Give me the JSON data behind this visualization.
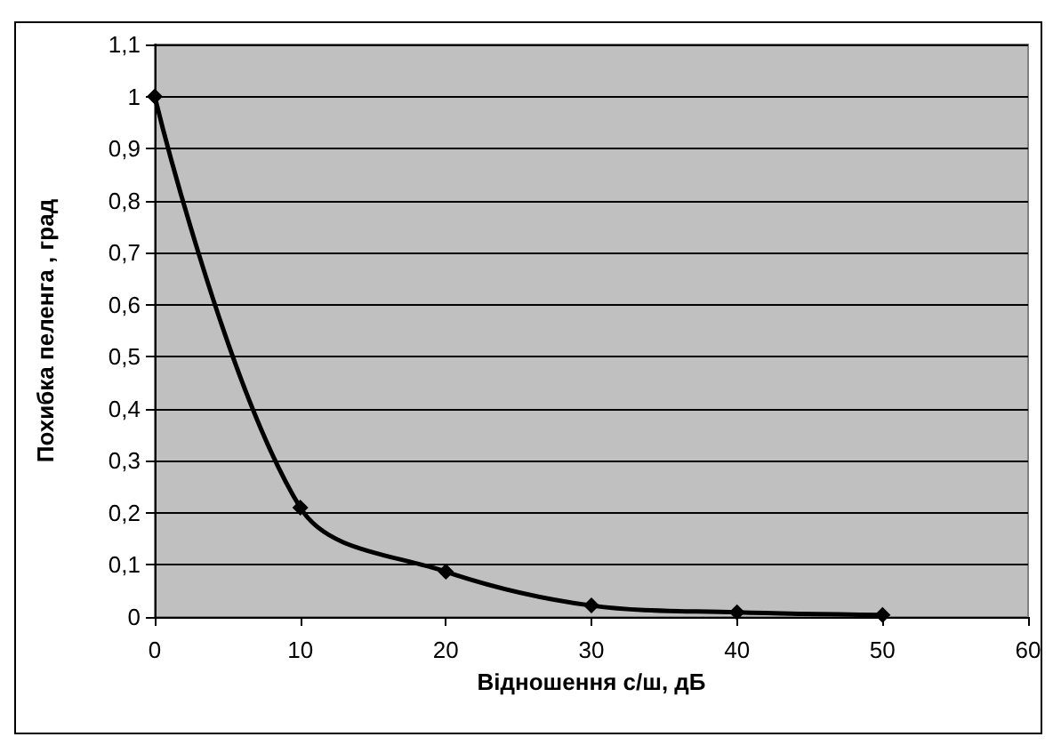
{
  "chart_data": {
    "type": "line",
    "xlabel": "Відношення с/ш, дБ",
    "ylabel": "Похибка пеленга , град",
    "x": [
      0,
      10,
      20,
      30,
      40,
      50
    ],
    "series": [
      {
        "color": "#000000",
        "values": [
          1,
          0.21,
          0.087,
          0.022,
          0.009,
          0.004
        ]
      }
    ],
    "xlim": [
      0,
      60
    ],
    "xticks": [
      0,
      10,
      20,
      30,
      40,
      50,
      60
    ],
    "ylim": [
      0,
      1.1
    ],
    "yticks": [
      {
        "value": 0,
        "label": "0"
      },
      {
        "value": 0.1,
        "label": "0,1"
      },
      {
        "value": 0.2,
        "label": "0,2"
      },
      {
        "value": 0.3,
        "label": "0,3"
      },
      {
        "value": 0.4,
        "label": "0,4"
      },
      {
        "value": 0.5,
        "label": "0,5"
      },
      {
        "value": 0.6,
        "label": "0,6"
      },
      {
        "value": 0.7,
        "label": "0,7"
      },
      {
        "value": 0.8,
        "label": "0,8"
      },
      {
        "value": 0.9,
        "label": "0,9"
      },
      {
        "value": 1,
        "label": "1"
      },
      {
        "value": 1.1,
        "label": "1,1"
      }
    ],
    "grid": "y",
    "marker": "diamond"
  }
}
